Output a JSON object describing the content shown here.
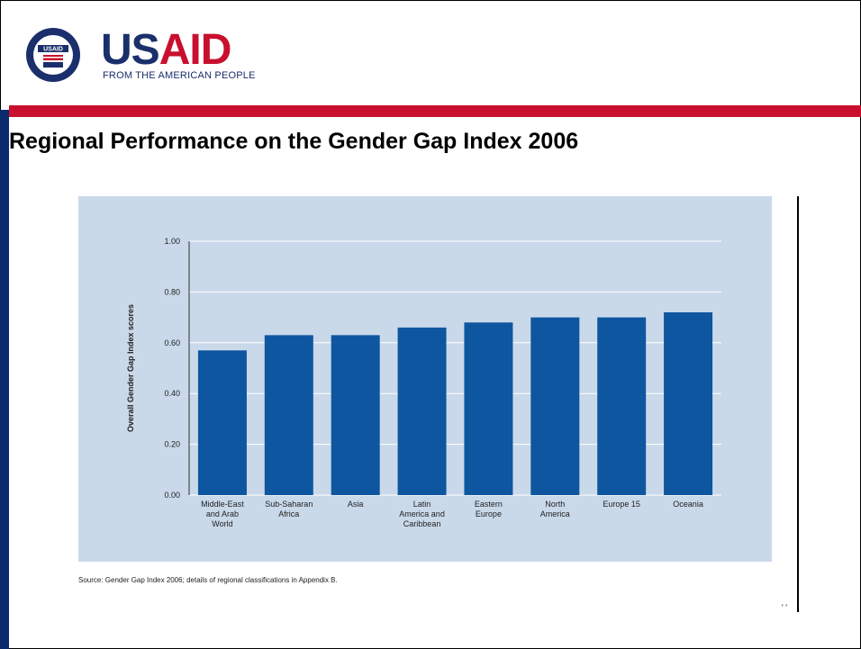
{
  "header": {
    "logo_word_us": "US",
    "logo_word_aid": "AID",
    "logo_tagline": "FROM THE AMERICAN PEOPLE",
    "seal_text": "USAID"
  },
  "title": "Regional Performance on the Gender Gap Index 2006",
  "source": "Source: Gender Gap Index 2006; details of regional classifications in Appendix B.",
  "page_marks": "' '",
  "colors": {
    "bar": "#0f56a0",
    "panel": "#c9d9ea",
    "red_band": "#c8102e",
    "navy": "#1a2f6b"
  },
  "chart_data": {
    "type": "bar",
    "categories": [
      [
        "Middle-East",
        "and Arab",
        "World"
      ],
      [
        "Sub-Saharan",
        "Africa"
      ],
      [
        "Asia"
      ],
      [
        "Latin",
        "America and",
        "Caribbean"
      ],
      [
        "Eastern",
        "Europe"
      ],
      [
        "North",
        "America"
      ],
      [
        "Europe 15"
      ],
      [
        "Oceania"
      ]
    ],
    "values": [
      0.57,
      0.63,
      0.63,
      0.66,
      0.68,
      0.7,
      0.7,
      0.72
    ],
    "ylabel": "Overall Gender Gap Index scores",
    "yticks": [
      "0.00",
      "0.20",
      "0.40",
      "0.60",
      "0.80",
      "1.00"
    ],
    "ylim": [
      0,
      1
    ],
    "grid": true
  }
}
